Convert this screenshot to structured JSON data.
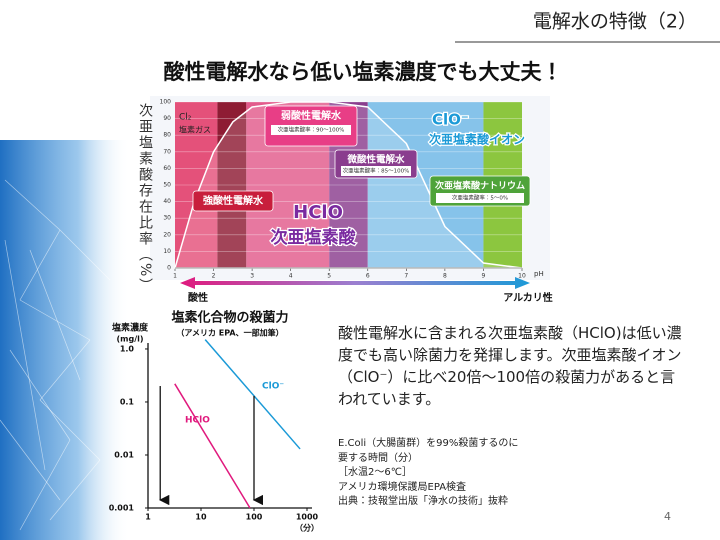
{
  "header": {
    "title": "電解水の特徴（2）",
    "headline": "酸性電解水なら低い塩素濃度でも大丈夫！",
    "page_number": "4"
  },
  "chart_data": [
    {
      "type": "area",
      "y_label": "次亜塩素酸存在比率（%）",
      "x_unit": "pH",
      "x": [
        1,
        1.5,
        2,
        2.5,
        3,
        4,
        5,
        6,
        7,
        7.5,
        8,
        9,
        10
      ],
      "values": [
        0,
        40,
        70,
        88,
        97,
        100,
        100,
        97,
        75,
        50,
        25,
        3,
        0
      ],
      "xlim": [
        1,
        10
      ],
      "ylim": [
        0,
        100
      ],
      "xticks": [
        1,
        2,
        3,
        4,
        5,
        6,
        7,
        8,
        9,
        10
      ],
      "yticks": [
        0,
        10,
        20,
        30,
        40,
        50,
        60,
        70,
        80,
        90,
        100
      ],
      "bands": [
        {
          "from": 1,
          "to": 2.1,
          "color": "#e4517a"
        },
        {
          "from": 2.1,
          "to": 2.85,
          "color": "#8e1c34"
        },
        {
          "from": 2.85,
          "to": 5,
          "color": "#e25b8c"
        },
        {
          "from": 5,
          "to": 6,
          "color": "#8a3d8e"
        },
        {
          "from": 6,
          "to": 9,
          "color": "#86c3ea"
        },
        {
          "from": 9,
          "to": 10,
          "color": "#8cc63f"
        }
      ],
      "annotations": [
        {
          "text": "強酸性電解水"
        },
        {
          "text": "弱酸性電解水",
          "sub": "次亜塩素酸率：90〜100%"
        },
        {
          "text": "微酸性電解水",
          "sub": "次亜塩素酸率：85〜100%"
        },
        {
          "text": "次亜塩素酸ナトリウム",
          "sub": "次亜塩素酸率：5〜0%"
        },
        {
          "text": "HClO"
        },
        {
          "text": "次亜塩素酸"
        },
        {
          "text": "ClO⁻"
        },
        {
          "text": "次亜塩素酸イオン"
        },
        {
          "text": "Cl₂"
        },
        {
          "text": "塩素ガス"
        }
      ],
      "acid": "酸性",
      "alkali": "アルカリ性"
    },
    {
      "type": "line",
      "title": "塩素化合物の殺菌力",
      "subtitle": "（アメリカ EPA、一部加筆）",
      "y_label": "塩素濃度",
      "y_unit": "(mg/l)",
      "x_unit": "（分）",
      "log_x": true,
      "log_y": true,
      "xlim": [
        1,
        1000
      ],
      "ylim": [
        0.001,
        2
      ],
      "xticks": [
        1,
        10,
        100,
        1000
      ],
      "yticks": [
        0.001,
        0.01,
        0.1,
        {
          "value": 1,
          "label": "1.0"
        }
      ],
      "series": [
        {
          "name": "HClO",
          "color": "#e0197d",
          "x": [
            3.2,
            84
          ],
          "values": [
            0.22,
            0.001
          ]
        },
        {
          "name": "ClO⁻",
          "color": "#1b9ad7",
          "x": [
            12,
            740
          ],
          "values": [
            1.5,
            0.013
          ]
        }
      ],
      "arrows": {
        "x": [
          1.7,
          100
        ],
        "values": [
          0.2,
          0.13
        ]
      }
    }
  ],
  "body": {
    "paragraph": "酸性電解水に含まれる次亜塩素酸（HClO)は低い濃度でも高い除菌力を発揮します。次亜塩素酸イオン（ClO⁻）に比べ20倍〜100倍の殺菌力があると言われています。",
    "notes": [
      "E.Coli（大腸菌群）を99%殺菌するのに",
      "要する時間（分）",
      "［水温2〜6℃］",
      "アメリカ環境保護局EPA検査",
      "出典：技報堂出版「浄水の技術」抜粋"
    ]
  }
}
